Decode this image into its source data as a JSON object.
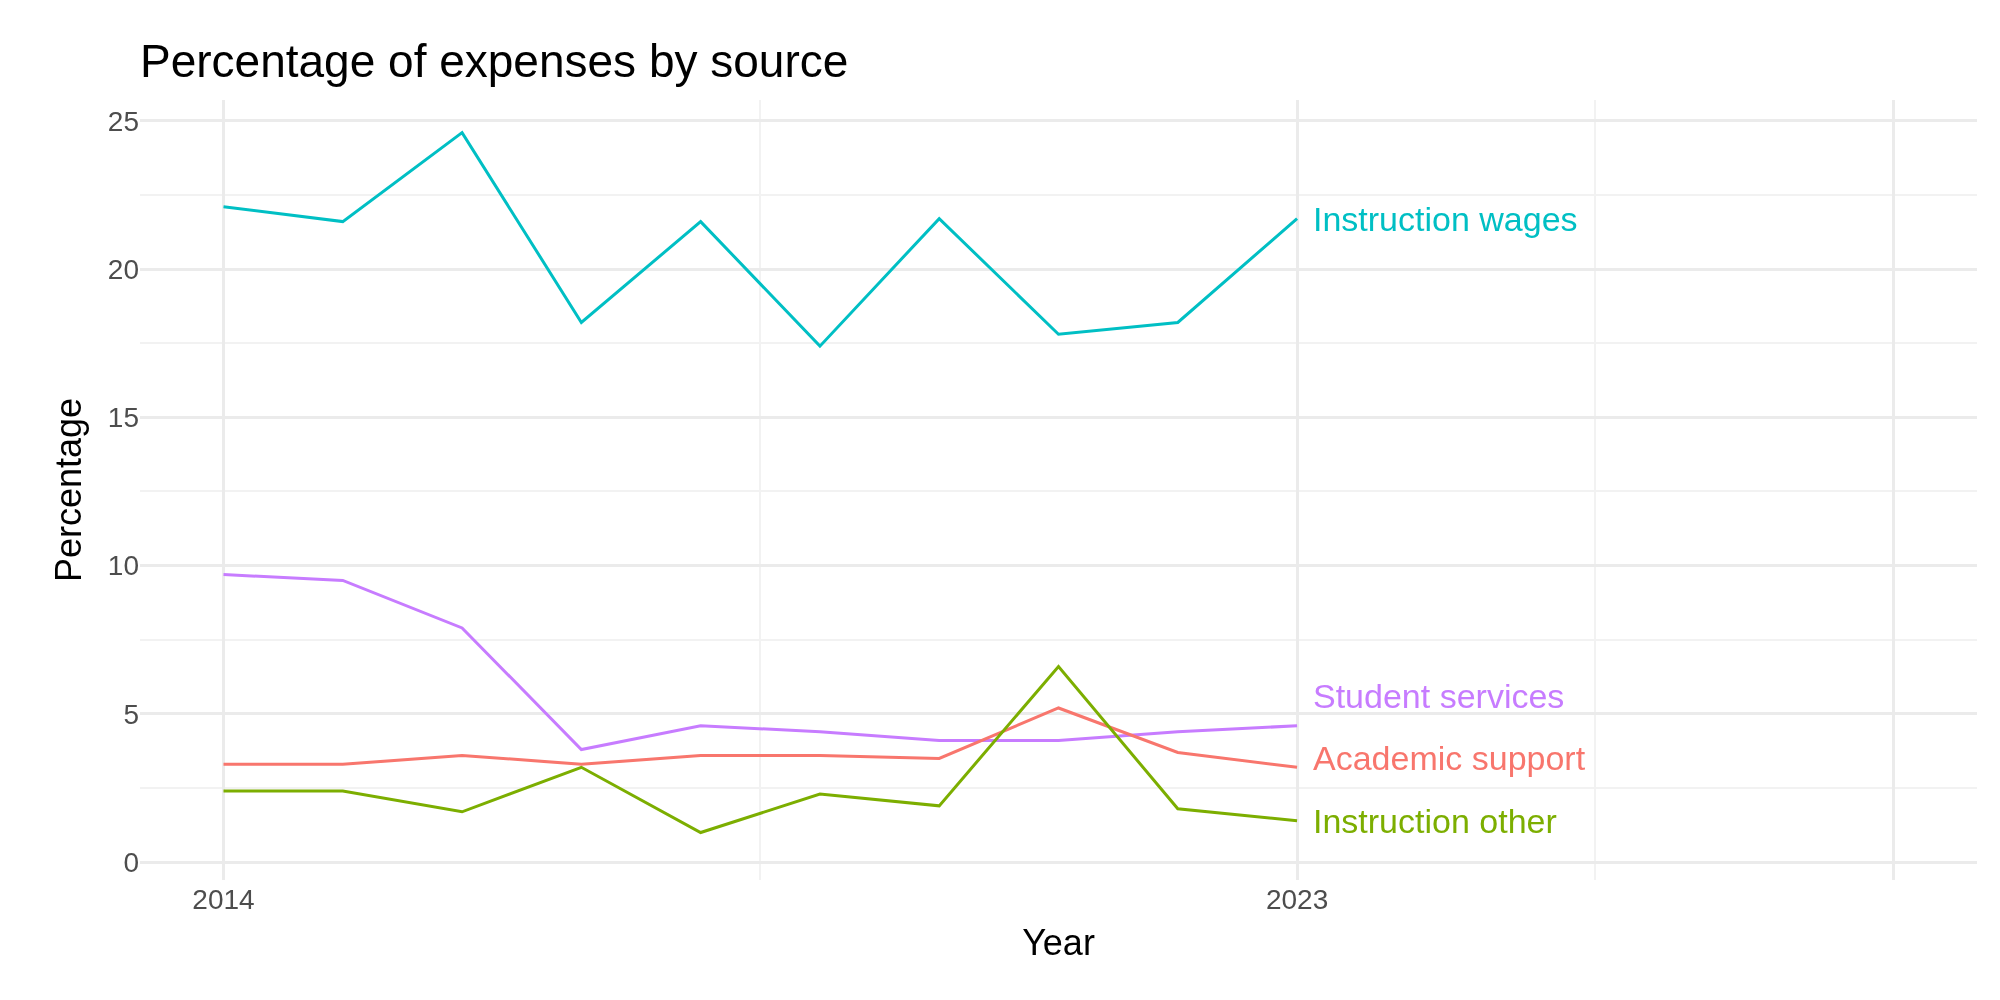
{
  "chart_data": {
    "type": "line",
    "title": "Percentage of expenses by source",
    "xlabel": "Year",
    "ylabel": "Percentage",
    "x": [
      2014,
      2015,
      2016,
      2017,
      2018,
      2019,
      2020,
      2021,
      2022,
      2023
    ],
    "series": [
      {
        "name": "Instruction wages",
        "color": "#00bfc4",
        "values": [
          22.1,
          21.6,
          24.6,
          18.2,
          21.6,
          17.4,
          21.7,
          17.8,
          18.2,
          21.7
        ]
      },
      {
        "name": "Student services",
        "color": "#c77cff",
        "values": [
          9.7,
          9.5,
          7.9,
          3.8,
          4.6,
          4.4,
          4.1,
          4.1,
          4.4,
          4.6
        ]
      },
      {
        "name": "Academic support",
        "color": "#f8766d",
        "values": [
          3.3,
          3.3,
          3.6,
          3.3,
          3.6,
          3.6,
          3.5,
          5.2,
          3.7,
          3.2
        ]
      },
      {
        "name": "Instruction other",
        "color": "#7cae00",
        "values": [
          2.4,
          2.4,
          1.7,
          3.2,
          1.0,
          2.3,
          1.9,
          6.6,
          1.8,
          1.4
        ]
      }
    ],
    "xlim": [
      2013.3,
      2028.7
    ],
    "xticks": [
      2014,
      2023,
      {
        "value": 2028,
        "label": null
      }
    ],
    "ylim": [
      -0.6,
      25.7
    ],
    "yticks": [
      0,
      5,
      10,
      15,
      20,
      25
    ],
    "grid": true,
    "legend": false,
    "line_style": "solid"
  }
}
